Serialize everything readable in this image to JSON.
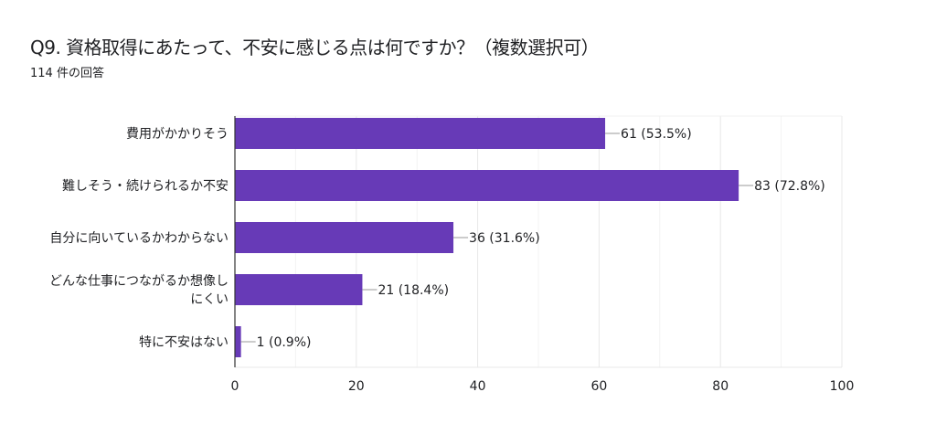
{
  "header": {
    "title": "Q9. 資格取得にあたって、不安に感じる点は何ですか？（複数選択可）",
    "response_count": "114 件の回答"
  },
  "chart_data": {
    "type": "bar",
    "orientation": "horizontal",
    "title": "Q9. 資格取得にあたって、不安に感じる点は何ですか？（複数選択可）",
    "categories": [
      [
        "費用がかかりそう"
      ],
      [
        "難しそう・続けられるか不安"
      ],
      [
        "自分に向いているかわからない"
      ],
      [
        "どんな仕事につながるか想像し",
        "にくい"
      ],
      [
        "特に不安はない"
      ]
    ],
    "values": [
      61,
      83,
      36,
      21,
      1
    ],
    "data_labels": [
      "61 (53.5%)",
      "83 (72.8%)",
      "36 (31.6%)",
      "21 (18.4%)",
      "1 (0.9%)"
    ],
    "xlim": [
      0,
      100
    ],
    "xticks": [
      0,
      20,
      40,
      60,
      80,
      100
    ],
    "grid": true,
    "bar_color": "#673ab7",
    "xlabel": "",
    "ylabel": ""
  }
}
